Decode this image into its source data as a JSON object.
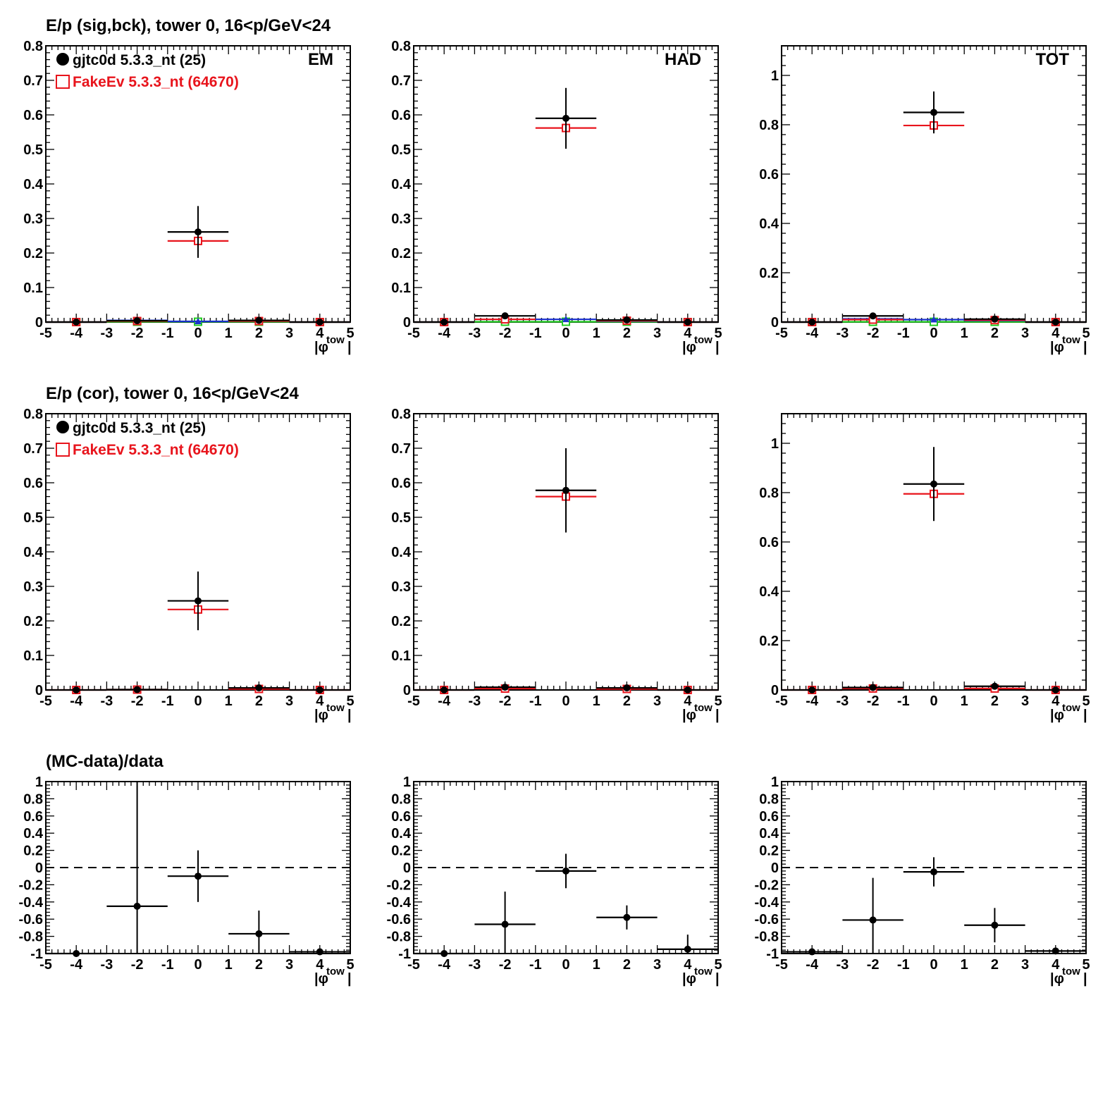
{
  "figure": {
    "row_titles": [
      "E/p (sig,bck), tower 0, 16<p/GeV<24",
      "E/p (cor), tower 0, 16<p/GeV<24",
      "(MC-data)/data"
    ],
    "panel_tags": [
      "EM",
      "HAD",
      "TOT"
    ],
    "legend": {
      "data_label": "gjtc0d 5.3.3_nt (25)",
      "mc_label": "FakeEv 5.3.3_nt (64670)"
    },
    "xlabel_main": "|φ",
    "xlabel_sub": "tow",
    "xlabel_close": "|"
  },
  "colors": {
    "data": "#000000",
    "mc": "#e8141c",
    "bck_data": "#1a33cc",
    "bck_mc": "#22cc22",
    "ratio_line": "#000000"
  },
  "chart_data": [
    {
      "type": "scatter",
      "panel": "EM, sig/bck",
      "xlim": [
        -5,
        5
      ],
      "ylim": [
        0,
        0.8
      ],
      "x": [
        -4,
        -2,
        0,
        2,
        4
      ],
      "x_halfwidth": 1,
      "series": [
        {
          "name": "gjtc0d 5.3.3_nt (25)",
          "color": "data",
          "marker": "filled-circle",
          "values": [
            0,
            0.004,
            0.261,
            0.005,
            0
          ],
          "errors": [
            0,
            0.004,
            0.075,
            0.004,
            0
          ]
        },
        {
          "name": "FakeEv 5.3.3_nt (64670)",
          "color": "mc",
          "marker": "open-square",
          "values": [
            0,
            0.003,
            0.235,
            0.003,
            0
          ],
          "errors": [
            0,
            0,
            0,
            0,
            0
          ]
        },
        {
          "color": "bck_data",
          "marker": "filled-triangle",
          "values": [
            0,
            0.005,
            0.002,
            0.003,
            0
          ],
          "errors": [
            0,
            0,
            0,
            0,
            0
          ]
        },
        {
          "color": "bck_mc",
          "marker": "open-square",
          "values": [
            0,
            0.001,
            0.001,
            0.001,
            0
          ],
          "errors": [
            0,
            0,
            0,
            0,
            0
          ]
        }
      ]
    },
    {
      "type": "scatter",
      "panel": "HAD, sig/bck",
      "xlim": [
        -5,
        5
      ],
      "ylim": [
        0,
        0.8
      ],
      "x": [
        -4,
        -2,
        0,
        2,
        4
      ],
      "x_halfwidth": 1,
      "series": [
        {
          "name": "gjtc0d 5.3.3_nt (25)",
          "color": "data",
          "marker": "filled-circle",
          "values": [
            0,
            0.018,
            0.59,
            0.006,
            0
          ],
          "errors": [
            0,
            0.006,
            0.088,
            0.003,
            0
          ]
        },
        {
          "name": "FakeEv 5.3.3_nt (64670)",
          "color": "mc",
          "marker": "open-square",
          "values": [
            0,
            0.008,
            0.562,
            0.004,
            0
          ],
          "errors": [
            0,
            0,
            0,
            0,
            0
          ]
        },
        {
          "color": "bck_data",
          "marker": "filled-triangle",
          "values": [
            0,
            0.008,
            0.008,
            0.003,
            0
          ],
          "errors": [
            0,
            0,
            0,
            0,
            0
          ]
        },
        {
          "color": "bck_mc",
          "marker": "open-square",
          "values": [
            0,
            0.001,
            0.001,
            0.001,
            0
          ],
          "errors": [
            0,
            0,
            0,
            0,
            0
          ]
        }
      ]
    },
    {
      "type": "scatter",
      "panel": "TOT, sig/bck",
      "xlim": [
        -5,
        5
      ],
      "ylim": [
        0,
        1.12
      ],
      "x": [
        -4,
        -2,
        0,
        2,
        4
      ],
      "x_halfwidth": 1,
      "series": [
        {
          "name": "gjtc0d 5.3.3_nt (25)",
          "color": "data",
          "marker": "filled-circle",
          "values": [
            0,
            0.025,
            0.85,
            0.012,
            0
          ],
          "errors": [
            0,
            0.008,
            0.085,
            0.006,
            0
          ]
        },
        {
          "name": "FakeEv 5.3.3_nt (64670)",
          "color": "mc",
          "marker": "open-square",
          "values": [
            0,
            0.01,
            0.797,
            0.008,
            0
          ],
          "errors": [
            0,
            0,
            0.025,
            0,
            0
          ]
        },
        {
          "color": "bck_data",
          "marker": "filled-triangle",
          "values": [
            0,
            0.013,
            0.01,
            0.006,
            0
          ],
          "errors": [
            0,
            0,
            0,
            0,
            0
          ]
        },
        {
          "color": "bck_mc",
          "marker": "open-square",
          "values": [
            0,
            0.001,
            0.001,
            0.001,
            0
          ],
          "errors": [
            0,
            0,
            0,
            0,
            0
          ]
        }
      ]
    },
    {
      "type": "scatter",
      "panel": "EM, cor",
      "xlim": [
        -5,
        5
      ],
      "ylim": [
        0,
        0.8
      ],
      "x": [
        -4,
        -2,
        0,
        2,
        4
      ],
      "x_halfwidth": 1,
      "series": [
        {
          "name": "gjtc0d 5.3.3_nt (25)",
          "color": "data",
          "marker": "filled-circle",
          "values": [
            0,
            0.001,
            0.258,
            0.006,
            0
          ],
          "errors": [
            0,
            0,
            0.085,
            0.003,
            0
          ]
        },
        {
          "name": "FakeEv 5.3.3_nt (64670)",
          "color": "mc",
          "marker": "open-square",
          "values": [
            0,
            0.001,
            0.233,
            0.003,
            0
          ],
          "errors": [
            0,
            0,
            0,
            0,
            0
          ]
        }
      ]
    },
    {
      "type": "scatter",
      "panel": "HAD, cor",
      "xlim": [
        -5,
        5
      ],
      "ylim": [
        0,
        0.8
      ],
      "x": [
        -4,
        -2,
        0,
        2,
        4
      ],
      "x_halfwidth": 1,
      "series": [
        {
          "name": "gjtc0d 5.3.3_nt (25)",
          "color": "data",
          "marker": "filled-circle",
          "values": [
            0,
            0.008,
            0.578,
            0.006,
            0
          ],
          "errors": [
            0,
            0.004,
            0.122,
            0.003,
            0
          ]
        },
        {
          "name": "FakeEv 5.3.3_nt (64670)",
          "color": "mc",
          "marker": "open-square",
          "values": [
            0,
            0.004,
            0.56,
            0.003,
            0
          ],
          "errors": [
            0,
            0,
            0,
            0,
            0
          ]
        }
      ]
    },
    {
      "type": "scatter",
      "panel": "TOT, cor",
      "xlim": [
        -5,
        5
      ],
      "ylim": [
        0,
        1.12
      ],
      "x": [
        -4,
        -2,
        0,
        2,
        4
      ],
      "x_halfwidth": 1,
      "series": [
        {
          "name": "gjtc0d 5.3.3_nt (25)",
          "color": "data",
          "marker": "filled-circle",
          "values": [
            0,
            0.01,
            0.835,
            0.015,
            0
          ],
          "errors": [
            0,
            0.004,
            0.15,
            0.006,
            0
          ]
        },
        {
          "name": "FakeEv 5.3.3_nt (64670)",
          "color": "mc",
          "marker": "open-square",
          "values": [
            0,
            0.006,
            0.795,
            0.006,
            0
          ],
          "errors": [
            0,
            0,
            0,
            0,
            0
          ]
        }
      ]
    },
    {
      "type": "scatter",
      "panel": "EM, (MC-data)/data",
      "xlim": [
        -5,
        5
      ],
      "ylim": [
        -1,
        1
      ],
      "x": [
        -4,
        -2,
        0,
        2,
        4
      ],
      "x_halfwidth": 1,
      "reference_line": 0,
      "series": [
        {
          "color": "data",
          "marker": "filled-circle",
          "values": [
            -1.0,
            -0.45,
            -0.1,
            -0.77,
            -0.98
          ],
          "errors": [
            0,
            1.45,
            0.3,
            0.27,
            0.02
          ]
        }
      ]
    },
    {
      "type": "scatter",
      "panel": "HAD, (MC-data)/data",
      "xlim": [
        -5,
        5
      ],
      "ylim": [
        -1,
        1
      ],
      "x": [
        -4,
        -2,
        0,
        2,
        4
      ],
      "x_halfwidth": 1,
      "reference_line": 0,
      "series": [
        {
          "color": "data",
          "marker": "filled-circle",
          "values": [
            -1.0,
            -0.66,
            -0.04,
            -0.58,
            -0.95
          ],
          "errors": [
            0,
            0.38,
            0.2,
            0.14,
            0.17
          ]
        }
      ]
    },
    {
      "type": "scatter",
      "panel": "TOT, (MC-data)/data",
      "xlim": [
        -5,
        5
      ],
      "ylim": [
        -1,
        1
      ],
      "x": [
        -4,
        -2,
        0,
        2,
        4
      ],
      "x_halfwidth": 1,
      "reference_line": 0,
      "series": [
        {
          "color": "data",
          "marker": "filled-circle",
          "values": [
            -0.98,
            -0.61,
            -0.05,
            -0.67,
            -0.97
          ],
          "errors": [
            0,
            0.49,
            0.17,
            0.2,
            0.02
          ]
        }
      ]
    }
  ]
}
